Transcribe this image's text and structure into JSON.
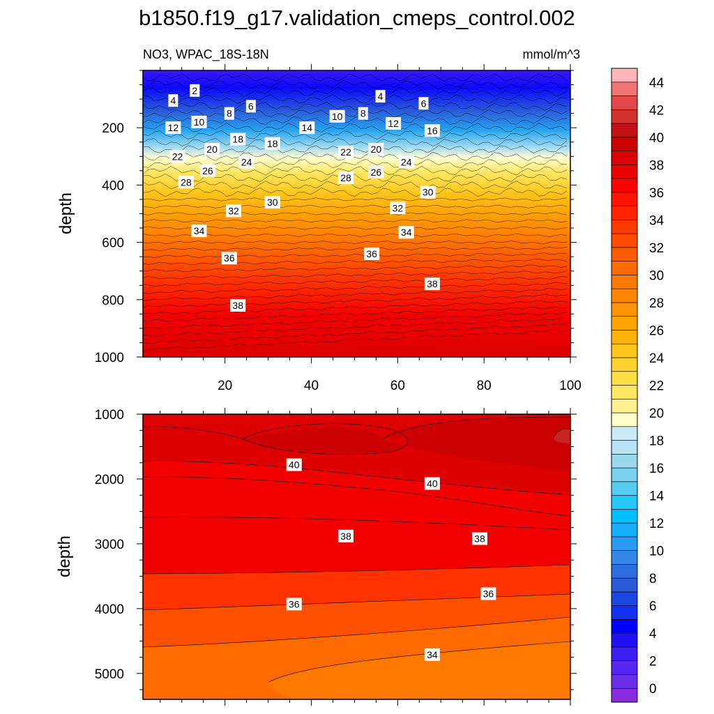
{
  "title": "b1850.f19_g17.validation_cmeps_control.002",
  "subtitle_left": "NO3, WPAC_18S-18N",
  "subtitle_right": "mmol/m^3",
  "chart_data": [
    {
      "type": "heatmap",
      "panel": "upper",
      "xlabel": "",
      "ylabel": "depth",
      "xlim": [
        1,
        100
      ],
      "ylim": [
        1000,
        0
      ],
      "xticks": [
        20,
        40,
        60,
        80,
        100
      ],
      "yticks": [
        200,
        400,
        600,
        800,
        1000
      ],
      "grid": false,
      "contour_labels": [
        {
          "x": 13,
          "y": 70,
          "value": "2"
        },
        {
          "x": 8,
          "y": 105,
          "value": "4"
        },
        {
          "x": 56,
          "y": 90,
          "value": "4"
        },
        {
          "x": 66,
          "y": 115,
          "value": "6"
        },
        {
          "x": 26,
          "y": 125,
          "value": "6"
        },
        {
          "x": 21,
          "y": 150,
          "value": "8"
        },
        {
          "x": 52,
          "y": 150,
          "value": "8"
        },
        {
          "x": 14,
          "y": 180,
          "value": "10"
        },
        {
          "x": 46,
          "y": 160,
          "value": "10"
        },
        {
          "x": 8,
          "y": 200,
          "value": "12"
        },
        {
          "x": 59,
          "y": 185,
          "value": "12"
        },
        {
          "x": 39,
          "y": 200,
          "value": "14"
        },
        {
          "x": 68,
          "y": 210,
          "value": "16"
        },
        {
          "x": 23,
          "y": 240,
          "value": "18"
        },
        {
          "x": 31,
          "y": 255,
          "value": "18"
        },
        {
          "x": 17,
          "y": 275,
          "value": "20"
        },
        {
          "x": 55,
          "y": 275,
          "value": "20"
        },
        {
          "x": 9,
          "y": 300,
          "value": "22"
        },
        {
          "x": 48,
          "y": 285,
          "value": "22"
        },
        {
          "x": 25,
          "y": 320,
          "value": "24"
        },
        {
          "x": 62,
          "y": 320,
          "value": "24"
        },
        {
          "x": 16,
          "y": 350,
          "value": "26"
        },
        {
          "x": 55,
          "y": 355,
          "value": "26"
        },
        {
          "x": 11,
          "y": 390,
          "value": "28"
        },
        {
          "x": 48,
          "y": 375,
          "value": "28"
        },
        {
          "x": 31,
          "y": 460,
          "value": "30"
        },
        {
          "x": 67,
          "y": 425,
          "value": "30"
        },
        {
          "x": 22,
          "y": 490,
          "value": "32"
        },
        {
          "x": 60,
          "y": 480,
          "value": "32"
        },
        {
          "x": 14,
          "y": 560,
          "value": "34"
        },
        {
          "x": 62,
          "y": 565,
          "value": "34"
        },
        {
          "x": 21,
          "y": 655,
          "value": "36"
        },
        {
          "x": 54,
          "y": 640,
          "value": "36"
        },
        {
          "x": 68,
          "y": 745,
          "value": "38"
        },
        {
          "x": 23,
          "y": 820,
          "value": "38"
        }
      ]
    },
    {
      "type": "heatmap",
      "panel": "lower",
      "xlabel": "",
      "ylabel": "depth",
      "xlim": [
        1,
        100
      ],
      "ylim": [
        5400,
        1000
      ],
      "xticks": [
        20,
        40,
        60,
        80,
        100
      ],
      "yticks": [
        1000,
        2000,
        3000,
        4000,
        5000
      ],
      "grid": false,
      "contour_labels": [
        {
          "x": 36,
          "y": 1780,
          "value": "40"
        },
        {
          "x": 68,
          "y": 2070,
          "value": "40"
        },
        {
          "x": 48,
          "y": 2880,
          "value": "38"
        },
        {
          "x": 79,
          "y": 2920,
          "value": "38"
        },
        {
          "x": 36,
          "y": 3930,
          "value": "36"
        },
        {
          "x": 81,
          "y": 3770,
          "value": "36"
        },
        {
          "x": 68,
          "y": 4710,
          "value": "34"
        }
      ]
    }
  ],
  "colorbar": {
    "labels": [
      "0",
      "2",
      "4",
      "6",
      "8",
      "10",
      "12",
      "14",
      "16",
      "18",
      "20",
      "22",
      "24",
      "26",
      "28",
      "30",
      "32",
      "34",
      "36",
      "38",
      "40",
      "42",
      "44"
    ],
    "colors": [
      "#8a2be2",
      "#6c2ee8",
      "#5626f0",
      "#3d1ef4",
      "#1f10f8",
      "#0000ff",
      "#1230f0",
      "#1e46e4",
      "#2a5ad8",
      "#2e6ee0",
      "#3586ea",
      "#2c99f2",
      "#15aef8",
      "#00bfff",
      "#26c6f8",
      "#56cbf2",
      "#7bd0ee",
      "#9bd8f0",
      "#b6e2f4",
      "#c9e9f6",
      "#ffffc6",
      "#fff28e",
      "#ffe762",
      "#ffdd42",
      "#ffd22e",
      "#ffc41a",
      "#ffb30a",
      "#ffa400",
      "#ff9400",
      "#ff8600",
      "#ff7800",
      "#ff6a00",
      "#ff5a00",
      "#ff4a00",
      "#ff3800",
      "#ff2400",
      "#ff1200",
      "#ff0000",
      "#ec0000",
      "#dc0000",
      "#cc0000",
      "#c41010",
      "#d43030",
      "#e24848",
      "#f07474",
      "#ffb6b6"
    ]
  }
}
